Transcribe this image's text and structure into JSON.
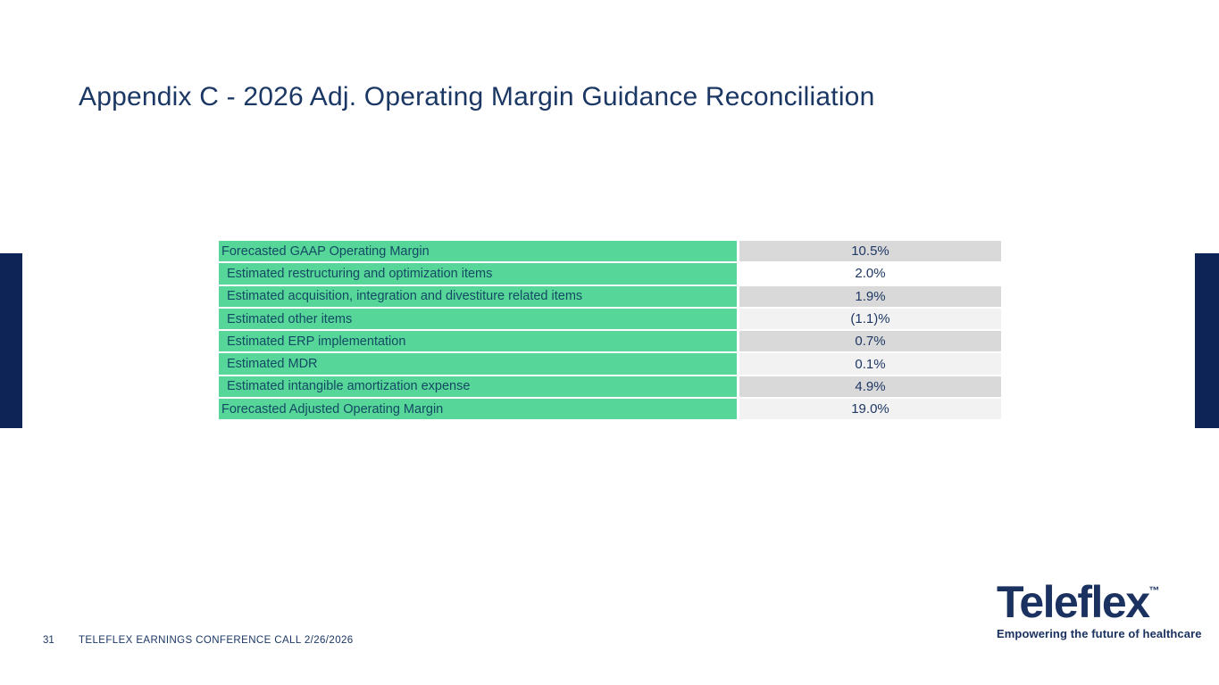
{
  "slide": {
    "title": "Appendix C - 2026 Adj. Operating Margin Guidance Reconciliation",
    "page_number": "31",
    "footer_text": "TELEFLEX EARNINGS CONFERENCE CALL 2/26/2026"
  },
  "table": {
    "rows": [
      {
        "label": "Forecasted GAAP Operating Margin",
        "value": "10.5%",
        "emphasis": true
      },
      {
        "label": "Estimated restructuring and optimization items",
        "value": "2.0%",
        "emphasis": false
      },
      {
        "label": "Estimated acquisition, integration and divestiture related items",
        "value": "1.9%",
        "emphasis": false
      },
      {
        "label": "Estimated other items",
        "value": "(1.1)%",
        "emphasis": false
      },
      {
        "label": "Estimated ERP implementation",
        "value": "0.7%",
        "emphasis": false
      },
      {
        "label": "Estimated MDR",
        "value": "0.1%",
        "emphasis": false
      },
      {
        "label": "Estimated intangible amortization expense",
        "value": "4.9%",
        "emphasis": false
      },
      {
        "label": "Forecasted Adjusted Operating Margin",
        "value": "19.0%",
        "emphasis": true
      }
    ]
  },
  "logo": {
    "brand": "Teleflex",
    "trademark": "™",
    "tagline": "Empowering the future of healthcare"
  },
  "colors": {
    "navy_bar": "#0e2356",
    "title_text": "#1b3764",
    "table_label_bg": "#57d69a",
    "table_label_text": "#134a63",
    "value_text": "#1f3864",
    "value_bg_dark": "#d9d9d9",
    "value_bg_light": "#f2f2f2",
    "value_bg_white": "#ffffff",
    "logo_navy": "#1b3160"
  }
}
